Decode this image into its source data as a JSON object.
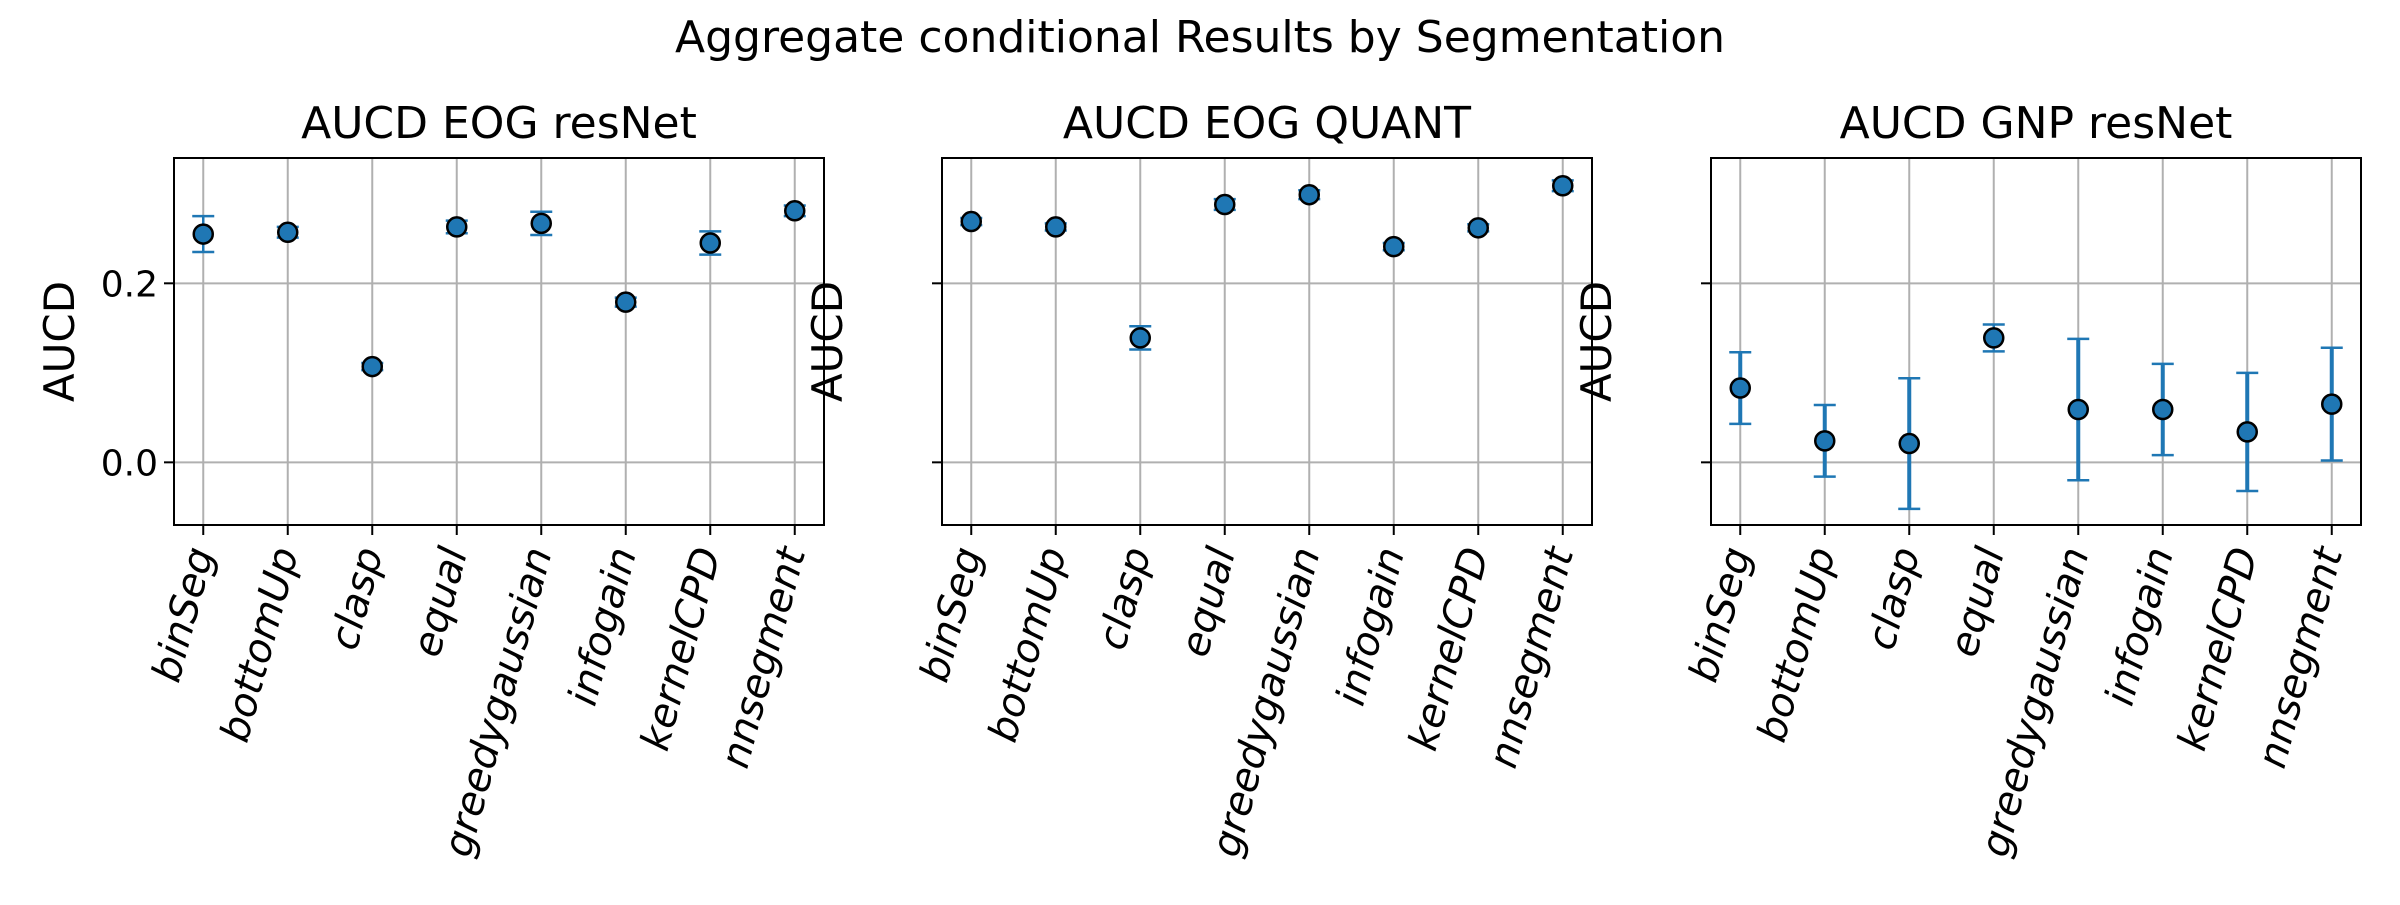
{
  "figure": {
    "title": "Aggregate conditional Results by Segmentation",
    "colors": {
      "marker_fill": "#1f77b4",
      "errorbar": "#1f77b4",
      "marker_edge": "#000000",
      "grid": "#b0b0b0",
      "axes": "#000000"
    }
  },
  "chart_data": [
    {
      "type": "scatter",
      "title": "AUCD EOG resNet",
      "ylabel": "AUCD",
      "ylim": [
        -0.07,
        0.34
      ],
      "yticks": [
        0.0,
        0.2
      ],
      "ytick_labels": [
        "0.0",
        "0.2"
      ],
      "grid": true,
      "categories": [
        "binSeg",
        "bottomUp",
        "clasp",
        "equal",
        "greedygaussian",
        "infogain",
        "kernelCPD",
        "nnsegment"
      ],
      "values": [
        0.255,
        0.257,
        0.107,
        0.263,
        0.267,
        0.179,
        0.245,
        0.281
      ],
      "errors": [
        0.02,
        0.006,
        0.004,
        0.007,
        0.013,
        0.005,
        0.013,
        0.006
      ]
    },
    {
      "type": "scatter",
      "title": "AUCD EOG QUANT",
      "ylabel": "AUCD",
      "ylim": [
        -0.07,
        0.34
      ],
      "yticks": [
        0.0,
        0.2
      ],
      "ytick_labels": [
        "",
        ""
      ],
      "grid": true,
      "categories": [
        "binSeg",
        "bottomUp",
        "clasp",
        "equal",
        "greedygaussian",
        "infogain",
        "kernelCPD",
        "nnsegment"
      ],
      "values": [
        0.269,
        0.263,
        0.139,
        0.288,
        0.299,
        0.241,
        0.262,
        0.309
      ],
      "errors": [
        0.004,
        0.004,
        0.013,
        0.006,
        0.005,
        0.004,
        0.004,
        0.006
      ]
    },
    {
      "type": "scatter",
      "title": "AUCD GNP resNet",
      "ylabel": "AUCD",
      "ylim": [
        -0.07,
        0.34
      ],
      "yticks": [
        0.0,
        0.2
      ],
      "ytick_labels": [
        "",
        ""
      ],
      "grid": true,
      "categories": [
        "binSeg",
        "bottomUp",
        "clasp",
        "equal",
        "greedygaussian",
        "infogain",
        "kernelCPD",
        "nnsegment"
      ],
      "values": [
        0.083,
        0.024,
        0.021,
        0.139,
        0.059,
        0.059,
        0.034,
        0.065
      ],
      "errors": [
        0.04,
        0.04,
        0.073,
        0.015,
        0.079,
        0.051,
        0.066,
        0.063
      ]
    }
  ]
}
